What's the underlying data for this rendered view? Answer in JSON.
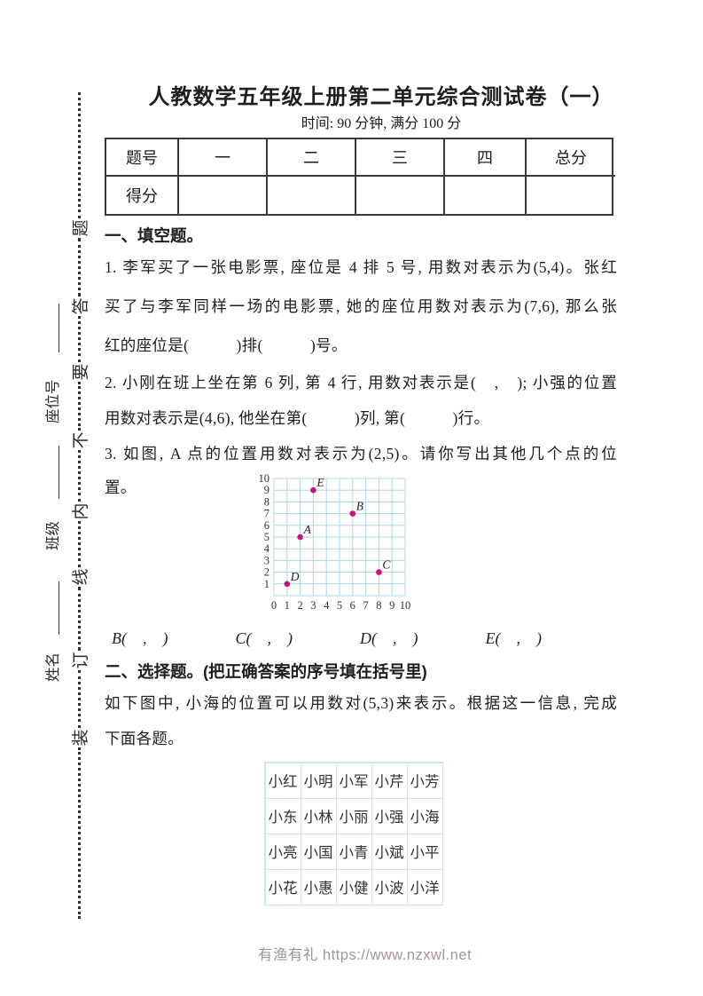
{
  "page": {
    "title": "人教数学五年级上册第二单元综合测试卷（一）",
    "subtitle": "时间: 90 分钟, 满分 100 分",
    "footer": "有渔有礼 https://www.nzxwl.net"
  },
  "sidebar": {
    "binding_phrase_top_to_bottom": [
      "题",
      "答",
      "要",
      "不",
      "内",
      "线",
      "订",
      "装"
    ],
    "fields": [
      "姓名",
      "班级",
      "座位号"
    ]
  },
  "score_table": {
    "headers": [
      "题号",
      "一",
      "二",
      "三",
      "四",
      "总分"
    ],
    "score_row_label": "得分",
    "score_values": [
      "",
      "",
      "",
      "",
      ""
    ]
  },
  "section_one": {
    "heading": "一、填空题。",
    "q1_lines": [
      "1. 李军买了一张电影票, 座位是 4 排 5 号, 用数对表示为(5,4)。张红",
      "买了与李军同样一场的电影票, 她的座位用数对表示为(7,6), 那么张",
      "红的座位是(　　　)排(　　　)号。"
    ],
    "q2_lines": [
      "2. 小刚在班上坐在第 6 列, 第 4 行, 用数对表示是(　,　); 小强的位置",
      "用数对表示是(4,6), 他坐在第(　　　)列, 第(　　　)行。"
    ],
    "q3_lines": [
      "3. 如图, A 点的位置用数对表示为(2,5)。请你写出其他几个点的位",
      "置。"
    ],
    "answer_blanks": [
      "B(　,　)",
      "C(　,　)",
      "D(　,　)",
      "E(　,　)"
    ]
  },
  "chart_data": {
    "type": "scatter",
    "title": "",
    "xlabel": "",
    "ylabel": "",
    "x_ticks": [
      0,
      1,
      2,
      3,
      4,
      5,
      6,
      7,
      8,
      9,
      10
    ],
    "y_ticks": [
      1,
      2,
      3,
      4,
      5,
      6,
      7,
      8,
      9,
      10
    ],
    "xlim": [
      0,
      10
    ],
    "ylim": [
      0,
      10
    ],
    "grid": true,
    "points": [
      {
        "label": "A",
        "x": 2,
        "y": 5
      },
      {
        "label": "B",
        "x": 6,
        "y": 7
      },
      {
        "label": "C",
        "x": 8,
        "y": 2
      },
      {
        "label": "D",
        "x": 1,
        "y": 1
      },
      {
        "label": "E",
        "x": 3,
        "y": 9
      }
    ],
    "grid_color": "#acd8dd",
    "point_color": "#c9137b"
  },
  "section_two": {
    "heading": "二、选择题。(把正确答案的序号填在括号里)",
    "intro_lines": [
      "如下图中, 小海的位置可以用数对(5,3)来表示。根据这一信息, 完成",
      "下面各题。"
    ],
    "names_table": [
      [
        "小红",
        "小明",
        "小军",
        "小芹",
        "小芳"
      ],
      [
        "小东",
        "小林",
        "小丽",
        "小强",
        "小海"
      ],
      [
        "小亮",
        "小国",
        "小青",
        "小斌",
        "小平"
      ],
      [
        "小花",
        "小惠",
        "小健",
        "小波",
        "小洋"
      ]
    ]
  }
}
